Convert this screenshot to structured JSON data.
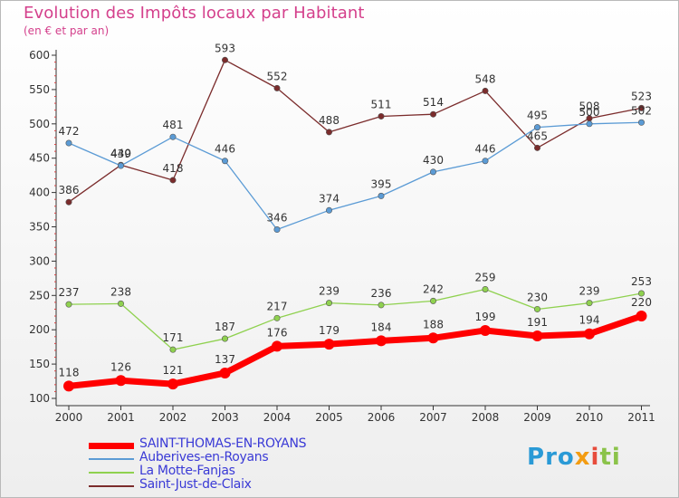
{
  "title": "Evolution des Impôts locaux par Habitant",
  "subtitle": "(en € et par an)",
  "logo": {
    "text": "Proxiti"
  },
  "chart_data": {
    "type": "line",
    "x": [
      "2000",
      "2001",
      "2002",
      "2003",
      "2004",
      "2005",
      "2006",
      "2007",
      "2008",
      "2009",
      "2010",
      "2011"
    ],
    "ylim": [
      100,
      600
    ],
    "yticks": [
      100,
      150,
      200,
      250,
      300,
      350,
      400,
      450,
      500,
      550,
      600
    ],
    "grid": false,
    "legend_position": "bottom-left",
    "series": [
      {
        "name": "SAINT-THOMAS-EN-ROYANS",
        "color": "#ff0000",
        "values": [
          118,
          126,
          121,
          137,
          176,
          179,
          184,
          188,
          199,
          191,
          194,
          220
        ]
      },
      {
        "name": "Auberives-en-Royans",
        "color": "#5b9bd5",
        "values": [
          472,
          439,
          481,
          446,
          346,
          374,
          395,
          430,
          446,
          495,
          500,
          502
        ]
      },
      {
        "name": "La Motte-Fanjas",
        "color": "#8fd14f",
        "values": [
          237,
          238,
          171,
          187,
          217,
          239,
          236,
          242,
          259,
          230,
          239,
          253
        ]
      },
      {
        "name": "Saint-Just-de-Claix",
        "color": "#7b2c2c",
        "values": [
          386,
          440,
          418,
          593,
          552,
          488,
          511,
          514,
          548,
          465,
          508,
          523
        ]
      }
    ]
  }
}
